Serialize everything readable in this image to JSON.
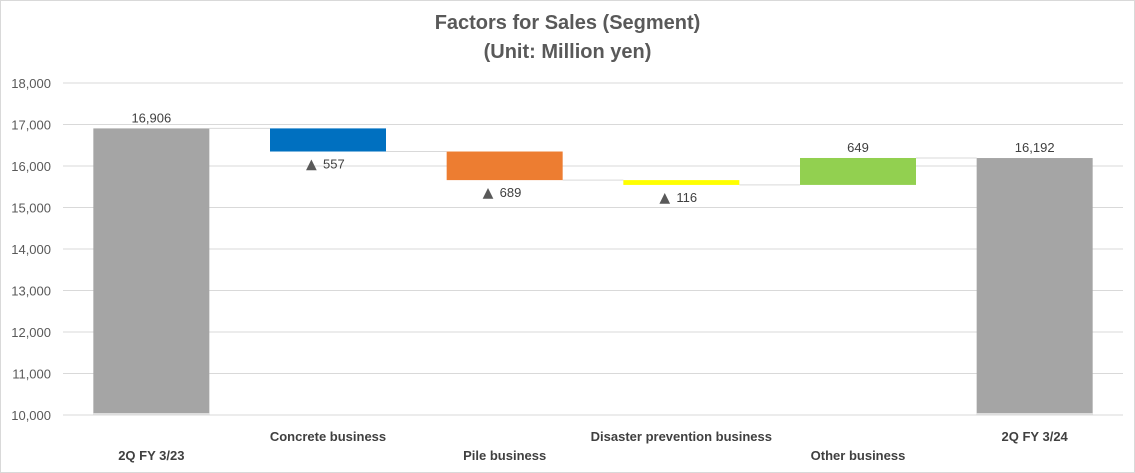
{
  "chart_data": {
    "type": "waterfall",
    "title": "Factors for Sales (Segment)",
    "subtitle": "(Unit: Million yen)",
    "ylim": [
      10000,
      18000
    ],
    "yticks": [
      10000,
      11000,
      12000,
      13000,
      14000,
      15000,
      16000,
      17000,
      18000
    ],
    "ytick_labels": [
      "10,000",
      "11,000",
      "12,000",
      "13,000",
      "14,000",
      "15,000",
      "16,000",
      "17,000",
      "18,000"
    ],
    "grid": true,
    "categories": [
      "2Q FY 3/23",
      "Concrete business",
      "Pile business",
      "Disaster prevention business",
      "Other business",
      "2Q FY 3/24"
    ],
    "bars": [
      {
        "kind": "total",
        "value": 16906,
        "label": "16,906",
        "color": "#a5a5a5"
      },
      {
        "kind": "delta",
        "value": -557,
        "label": "557",
        "color": "#0070c0"
      },
      {
        "kind": "delta",
        "value": -689,
        "label": "689",
        "color": "#ed7d31"
      },
      {
        "kind": "delta",
        "value": -116,
        "label": "116",
        "color": "#ffff00"
      },
      {
        "kind": "delta",
        "value": 649,
        "label": "649",
        "color": "#92d050"
      },
      {
        "kind": "total",
        "value": 16192,
        "label": "16,192",
        "color": "#a5a5a5"
      }
    ],
    "negative_marker": "▲"
  }
}
